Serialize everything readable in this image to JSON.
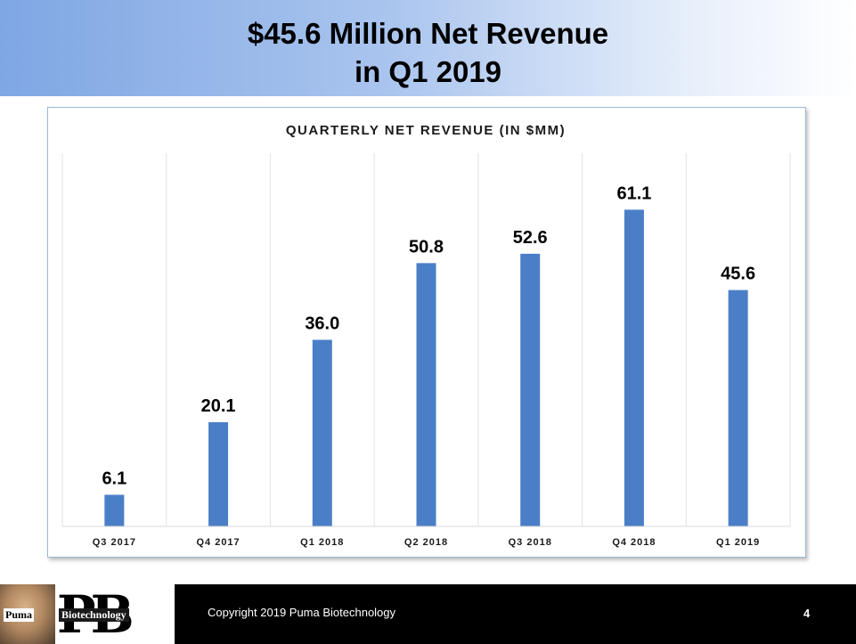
{
  "header": {
    "title_line1": "$45.6 Million Net Revenue",
    "title_line2": "in Q1  2019"
  },
  "chart_data": {
    "type": "bar",
    "title": "QUARTERLY NET REVENUE (IN $MM)",
    "categories": [
      "Q3 2017",
      "Q4 2017",
      "Q1 2018",
      "Q2 2018",
      "Q3 2018",
      "Q4 2018",
      "Q1 2019"
    ],
    "values": [
      6.1,
      20.1,
      36.0,
      50.8,
      52.6,
      61.1,
      45.6
    ],
    "value_labels": [
      "6.1",
      "20.1",
      "36.0",
      "50.8",
      "52.6",
      "61.1",
      "45.6"
    ],
    "xlabel": "",
    "ylabel": "",
    "ylim": [
      0,
      72
    ],
    "grid": "vertical",
    "bar_color": "#4a7fc7"
  },
  "footer": {
    "copyright": "Copyright 2019 Puma Biotechnology",
    "page_number": "4",
    "logo_text_1": "Puma",
    "logo_text_2": "Biotechnology",
    "logo_letters": "PB"
  }
}
